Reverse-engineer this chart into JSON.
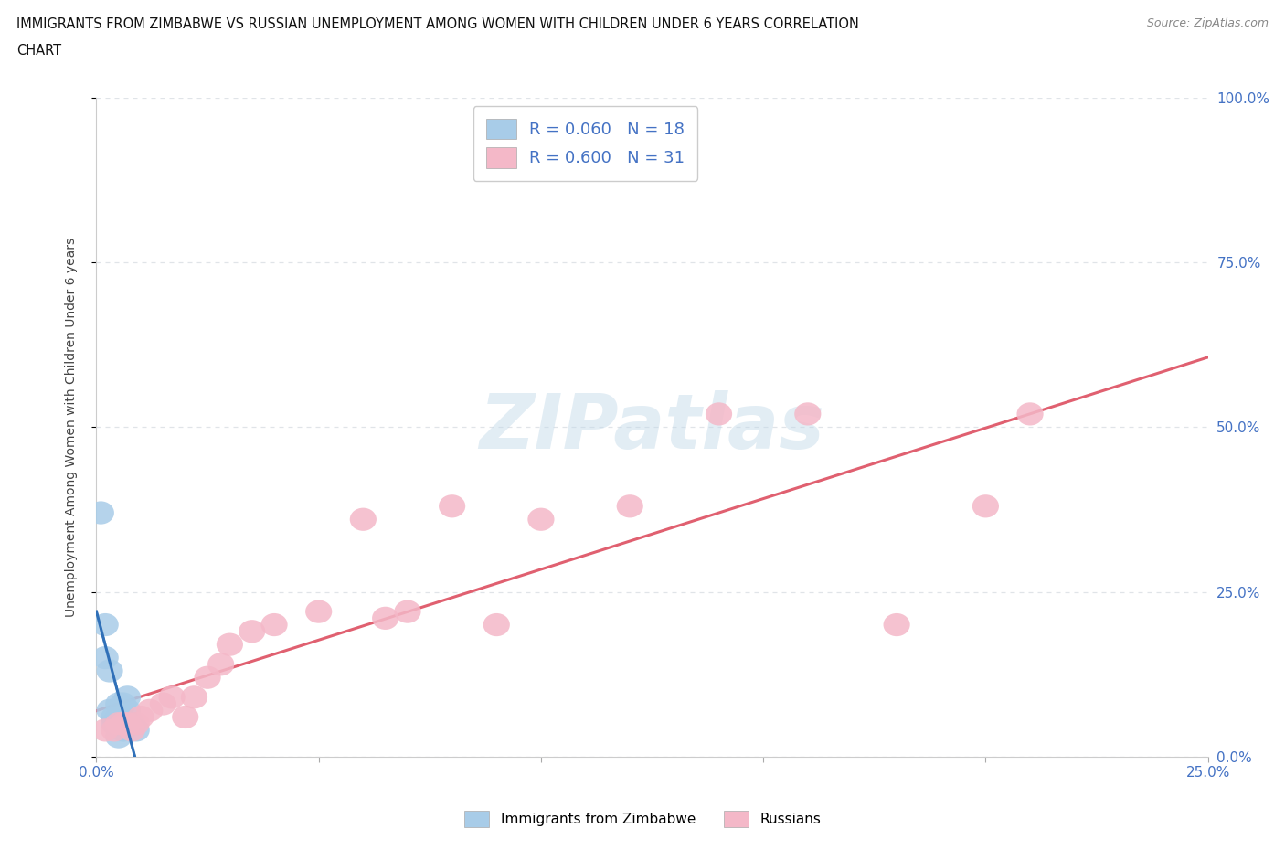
{
  "title_line1": "IMMIGRANTS FROM ZIMBABWE VS RUSSIAN UNEMPLOYMENT AMONG WOMEN WITH CHILDREN UNDER 6 YEARS CORRELATION",
  "title_line2": "CHART",
  "source": "Source: ZipAtlas.com",
  "ylabel": "Unemployment Among Women with Children Under 6 years",
  "xlim": [
    0.0,
    0.25
  ],
  "ylim": [
    0.0,
    1.0
  ],
  "zim_color": "#a8cce8",
  "rus_color": "#f4b8c8",
  "zim_line_color": "#3070b8",
  "rus_line_color": "#e06070",
  "watermark_text": "ZIPatlas",
  "zim_scatter_x": [
    0.001,
    0.002,
    0.002,
    0.003,
    0.003,
    0.004,
    0.004,
    0.005,
    0.005,
    0.005,
    0.006,
    0.006,
    0.006,
    0.007,
    0.007,
    0.007,
    0.008,
    0.009
  ],
  "zim_scatter_y": [
    0.37,
    0.2,
    0.15,
    0.13,
    0.07,
    0.06,
    0.05,
    0.08,
    0.06,
    0.03,
    0.08,
    0.05,
    0.04,
    0.09,
    0.07,
    0.05,
    0.05,
    0.04
  ],
  "rus_scatter_x": [
    0.002,
    0.004,
    0.005,
    0.006,
    0.007,
    0.008,
    0.009,
    0.01,
    0.012,
    0.015,
    0.017,
    0.02,
    0.022,
    0.025,
    0.028,
    0.03,
    0.035,
    0.04,
    0.05,
    0.06,
    0.065,
    0.07,
    0.08,
    0.09,
    0.1,
    0.12,
    0.14,
    0.16,
    0.18,
    0.2,
    0.21
  ],
  "rus_scatter_y": [
    0.04,
    0.04,
    0.05,
    0.05,
    0.05,
    0.04,
    0.05,
    0.06,
    0.07,
    0.08,
    0.09,
    0.06,
    0.09,
    0.12,
    0.14,
    0.17,
    0.19,
    0.2,
    0.22,
    0.36,
    0.21,
    0.22,
    0.38,
    0.2,
    0.36,
    0.38,
    0.52,
    0.52,
    0.2,
    0.38,
    0.52
  ],
  "background_color": "#ffffff",
  "grid_color": "#e0e4e8",
  "legend1_label": "R = 0.060   N = 18",
  "legend2_label": "R = 0.600   N = 31",
  "bottom_legend1": "Immigrants from Zimbabwe",
  "bottom_legend2": "Russians"
}
